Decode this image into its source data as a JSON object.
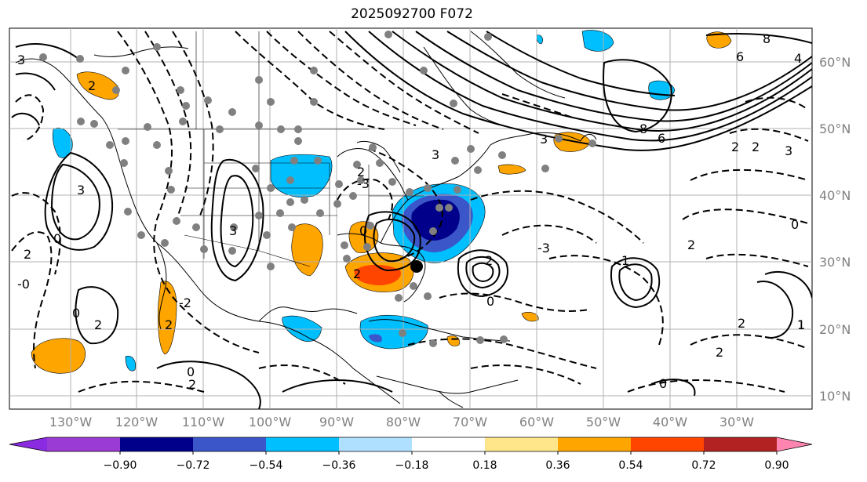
{
  "title": "2025092700 F072",
  "lat_labels": [
    "10°N",
    "20°N",
    "30°N",
    "40°N",
    "50°N",
    "60°N"
  ],
  "lon_labels": [
    "130°W",
    "120°W",
    "110°W",
    "100°W",
    "90°W",
    "80°W",
    "70°W",
    "60°W",
    "50°W",
    "40°W",
    "30°W"
  ],
  "colorbar": {
    "ticks": [
      "−0.90",
      "−0.72",
      "−0.54",
      "−0.36",
      "−0.18",
      "0.18",
      "0.36",
      "0.54",
      "0.72",
      "0.90"
    ],
    "colors": [
      "#8a2be2",
      "#9a3bd6",
      "#00008b",
      "#3a56c8",
      "#00bfff",
      "#b0e0ff",
      "#ffffff",
      "#ffe68a",
      "#ffa500",
      "#ff4500",
      "#b22222",
      "#ff85b0"
    ]
  },
  "contour_labels": [
    "3",
    "2",
    "3",
    "0",
    "-0",
    "3",
    "2",
    "8",
    "6",
    "4",
    "8",
    "6",
    "2",
    "2",
    "3",
    "-3",
    "2",
    "0",
    "-3",
    "3",
    "2",
    "0",
    "-2",
    "2",
    "2",
    "0",
    "1",
    "2",
    "2",
    "3",
    "0",
    "2",
    "0",
    "1",
    "2",
    "0",
    "2",
    "1"
  ]
}
